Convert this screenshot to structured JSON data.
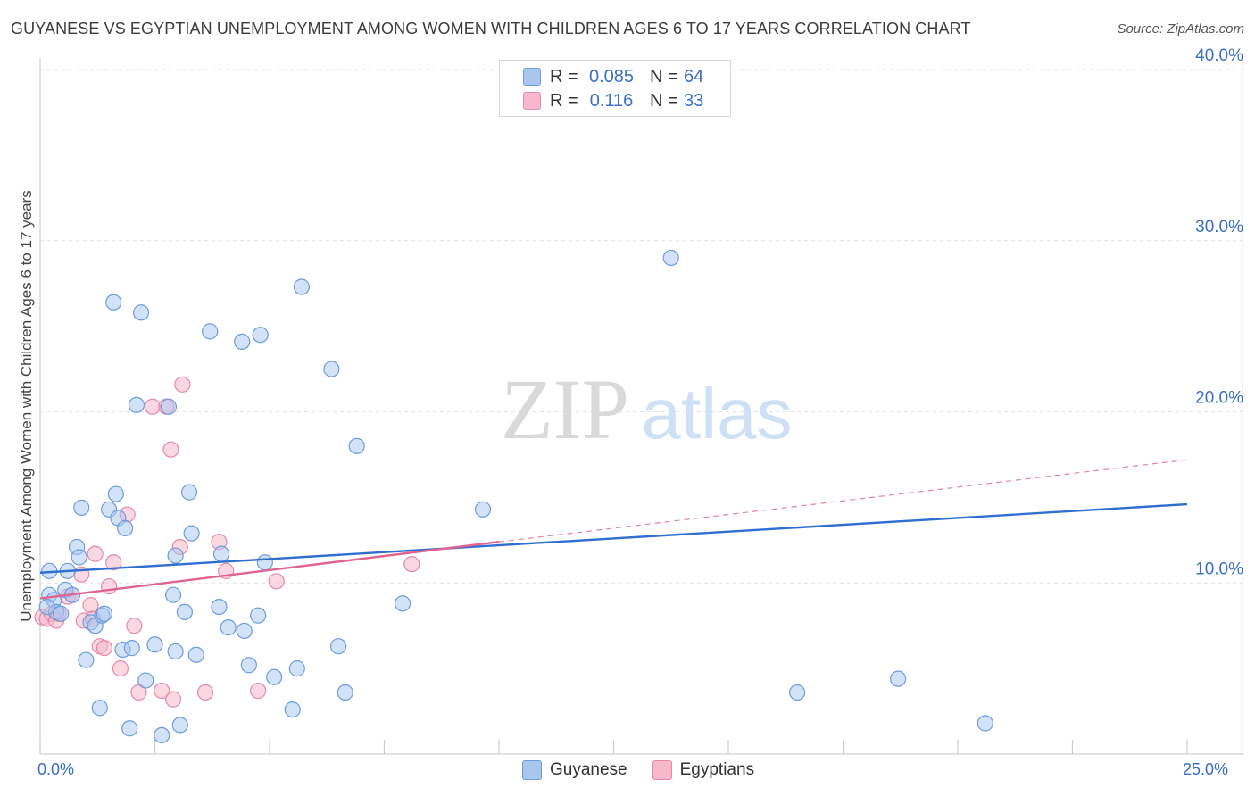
{
  "header": {
    "title": "GUYANESE VS EGYPTIAN UNEMPLOYMENT AMONG WOMEN WITH CHILDREN AGES 6 TO 17 YEARS CORRELATION CHART",
    "source": "Source: ZipAtlas.com"
  },
  "watermark": {
    "zip": "ZIP",
    "atlas": "atlas"
  },
  "legend": {
    "series": [
      {
        "r_label": "R =",
        "r_value": "0.085",
        "n_label": "N =",
        "n_value": "64"
      },
      {
        "r_label": "R =",
        "r_value": "0.116",
        "n_label": "N =",
        "n_value": "33"
      }
    ]
  },
  "colors": {
    "guyanese_fill": "#a9c6ef",
    "guyanese_stroke": "#6b9de0",
    "guyanese_line": "#2f6fd0",
    "egyptians_fill": "#f6b8ca",
    "egyptians_stroke": "#e58aa8",
    "egyptians_line": "#e0648e",
    "tick_text": "#3a6fc4",
    "grid": "#e2e2e2"
  },
  "chart_data": {
    "type": "scatter",
    "title": "GUYANESE VS EGYPTIAN UNEMPLOYMENT AMONG WOMEN WITH CHILDREN AGES 6 TO 17 YEARS CORRELATION CHART",
    "xlabel": "",
    "ylabel": "Unemployment Among Women with Children Ages 6 to 17 years",
    "xlim": [
      0,
      25
    ],
    "ylim": [
      0,
      40
    ],
    "x_tick_labels": [
      "0.0%",
      "25.0%"
    ],
    "y_ticks": [
      10,
      20,
      30,
      40
    ],
    "y_tick_labels": [
      "10.0%",
      "20.0%",
      "30.0%",
      "40.0%"
    ],
    "grid": true,
    "legend_position": "top-center",
    "series": [
      {
        "name": "Guyanese",
        "r": 0.085,
        "n": 64,
        "trend": {
          "x": [
            0,
            25
          ],
          "y": [
            10.6,
            14.6
          ]
        },
        "points": [
          [
            0.2,
            9.3
          ],
          [
            0.2,
            10.7
          ],
          [
            0.3,
            9.0
          ],
          [
            0.35,
            8.3
          ],
          [
            0.45,
            8.2
          ],
          [
            0.55,
            9.6
          ],
          [
            0.6,
            10.7
          ],
          [
            0.7,
            9.3
          ],
          [
            0.8,
            12.1
          ],
          [
            0.85,
            11.5
          ],
          [
            0.9,
            14.4
          ],
          [
            1.0,
            5.5
          ],
          [
            1.1,
            7.7
          ],
          [
            1.2,
            7.5
          ],
          [
            1.3,
            2.7
          ],
          [
            1.35,
            8.1
          ],
          [
            1.4,
            8.2
          ],
          [
            1.5,
            14.3
          ],
          [
            1.6,
            26.4
          ],
          [
            1.65,
            15.2
          ],
          [
            1.7,
            13.8
          ],
          [
            1.8,
            6.1
          ],
          [
            1.85,
            13.2
          ],
          [
            1.95,
            1.5
          ],
          [
            2.0,
            6.2
          ],
          [
            2.1,
            20.4
          ],
          [
            2.2,
            25.8
          ],
          [
            2.3,
            4.3
          ],
          [
            2.5,
            6.4
          ],
          [
            2.65,
            1.1
          ],
          [
            2.8,
            20.3
          ],
          [
            2.9,
            9.3
          ],
          [
            2.95,
            6.0
          ],
          [
            3.05,
            1.7
          ],
          [
            3.15,
            8.3
          ],
          [
            3.25,
            15.3
          ],
          [
            3.3,
            12.9
          ],
          [
            3.4,
            5.8
          ],
          [
            3.7,
            24.7
          ],
          [
            3.9,
            8.6
          ],
          [
            3.95,
            11.7
          ],
          [
            4.1,
            7.4
          ],
          [
            4.4,
            24.1
          ],
          [
            4.45,
            7.2
          ],
          [
            4.55,
            5.2
          ],
          [
            4.75,
            8.1
          ],
          [
            4.8,
            24.5
          ],
          [
            4.9,
            11.2
          ],
          [
            5.1,
            4.5
          ],
          [
            5.5,
            2.6
          ],
          [
            5.7,
            27.3
          ],
          [
            5.6,
            5.0
          ],
          [
            6.35,
            22.5
          ],
          [
            6.5,
            6.3
          ],
          [
            6.65,
            3.6
          ],
          [
            6.9,
            18.0
          ],
          [
            7.9,
            8.8
          ],
          [
            9.65,
            14.3
          ],
          [
            13.75,
            29.0
          ],
          [
            16.5,
            3.6
          ],
          [
            18.7,
            4.4
          ],
          [
            20.6,
            1.8
          ],
          [
            0.15,
            8.6
          ],
          [
            2.95,
            11.6
          ]
        ]
      },
      {
        "name": "Egyptians",
        "r": 0.116,
        "n": 33,
        "trend_solid": {
          "x": [
            0,
            10
          ],
          "y": [
            9.1,
            12.4
          ]
        },
        "trend_dashed": {
          "x": [
            10,
            25
          ],
          "y": [
            12.4,
            17.2
          ]
        },
        "points": [
          [
            0.05,
            8.0
          ],
          [
            0.15,
            7.9
          ],
          [
            0.25,
            8.2
          ],
          [
            0.35,
            7.8
          ],
          [
            0.4,
            8.2
          ],
          [
            0.6,
            9.2
          ],
          [
            0.7,
            9.3
          ],
          [
            0.9,
            10.5
          ],
          [
            0.95,
            7.8
          ],
          [
            1.1,
            8.7
          ],
          [
            1.15,
            7.9
          ],
          [
            1.2,
            11.7
          ],
          [
            1.3,
            6.3
          ],
          [
            1.4,
            6.2
          ],
          [
            1.5,
            9.8
          ],
          [
            1.6,
            11.2
          ],
          [
            1.75,
            5.0
          ],
          [
            1.9,
            14.0
          ],
          [
            2.05,
            7.5
          ],
          [
            2.15,
            3.6
          ],
          [
            2.45,
            20.3
          ],
          [
            2.65,
            3.7
          ],
          [
            2.75,
            20.3
          ],
          [
            2.85,
            17.8
          ],
          [
            2.9,
            3.2
          ],
          [
            3.1,
            21.6
          ],
          [
            3.05,
            12.1
          ],
          [
            3.6,
            3.6
          ],
          [
            3.9,
            12.4
          ],
          [
            4.05,
            10.7
          ],
          [
            4.75,
            3.7
          ],
          [
            5.15,
            10.1
          ],
          [
            8.1,
            11.1
          ]
        ]
      }
    ]
  },
  "bottom_legend": {
    "items": [
      "Guyanese",
      "Egyptians"
    ]
  }
}
